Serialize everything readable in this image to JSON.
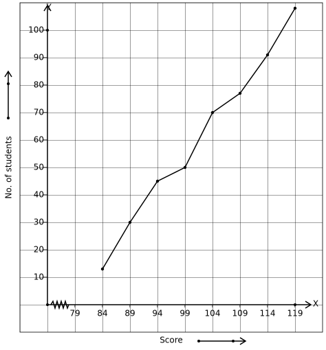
{
  "chart_data": {
    "type": "line",
    "y_axis_name": "Y",
    "x_axis_name": "X",
    "ylabel": "No. of students",
    "xlabel": "Score",
    "x": [
      84,
      89,
      94,
      99,
      104,
      109,
      114,
      119
    ],
    "values": [
      13,
      30,
      45,
      50,
      70,
      77,
      91,
      108
    ],
    "color": "#000000",
    "xlim": [
      69,
      124
    ],
    "ylim": [
      -10,
      110
    ],
    "xticks": [
      79,
      84,
      89,
      94,
      99,
      104,
      109,
      114,
      119
    ],
    "yticks": [
      10,
      20,
      30,
      40,
      50,
      60,
      70,
      80,
      90,
      100
    ],
    "grid": true
  }
}
